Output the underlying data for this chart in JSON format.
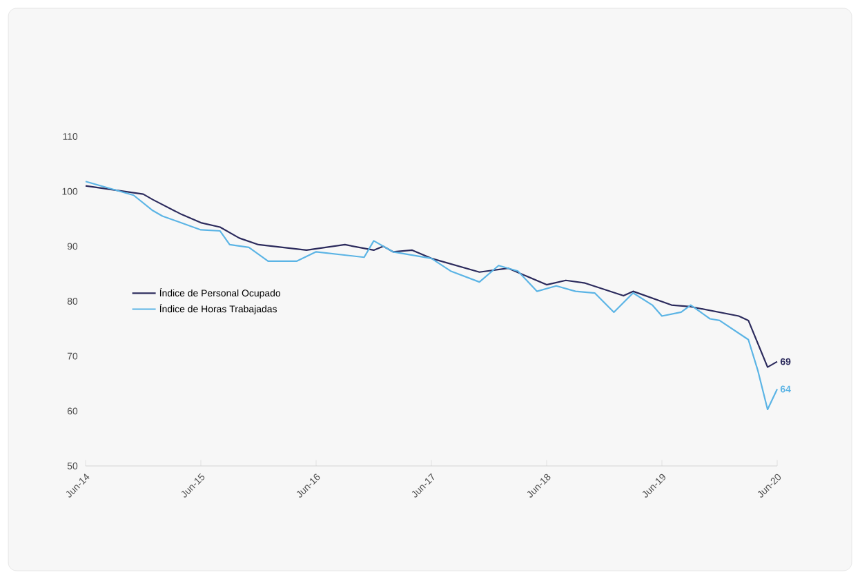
{
  "chart_data": {
    "type": "line",
    "xlim": [
      "2014-06",
      "2020-06"
    ],
    "ylim": [
      50,
      110
    ],
    "yticks": [
      50,
      60,
      70,
      80,
      90,
      100,
      110
    ],
    "xticks": [
      {
        "value": "2014-06",
        "label": "Jun-14"
      },
      {
        "value": "2015-06",
        "label": "Jun-15"
      },
      {
        "value": "2016-06",
        "label": "Jun-16"
      },
      {
        "value": "2017-06",
        "label": "Jun-17"
      },
      {
        "value": "2018-06",
        "label": "Jun-18"
      },
      {
        "value": "2019-06",
        "label": "Jun-19"
      },
      {
        "value": "2020-06",
        "label": "Jun-20"
      }
    ],
    "legend": "left",
    "grid": false,
    "marker": "none",
    "line_style": "solid",
    "series": [
      {
        "name": "Índice de Personal Ocupado",
        "color": "#2b2a5c",
        "x": [
          "2014-06",
          "2014-12",
          "2015-01",
          "2015-04",
          "2015-06",
          "2015-08",
          "2015-10",
          "2015-12",
          "2016-05",
          "2016-09",
          "2016-12",
          "2017-01",
          "2017-02",
          "2017-04",
          "2017-06",
          "2017-11",
          "2018-02",
          "2018-06",
          "2018-08",
          "2018-10",
          "2019-02",
          "2019-03",
          "2019-07",
          "2019-09",
          "2020-02",
          "2020-03",
          "2020-05",
          "2020-06"
        ],
        "values": [
          101,
          99.5,
          98.5,
          95.8,
          94.3,
          93.5,
          91.5,
          90.3,
          89.3,
          90.3,
          89.3,
          90,
          89,
          89.3,
          87.8,
          85.3,
          86,
          83,
          83.8,
          83.3,
          81,
          81.8,
          79.3,
          79,
          77.3,
          76.5,
          68,
          69
        ],
        "value_labels": [
          null,
          null,
          null,
          null,
          null,
          null,
          null,
          null,
          null,
          null,
          null,
          null,
          null,
          null,
          null,
          null,
          null,
          null,
          null,
          null,
          null,
          null,
          null,
          null,
          null,
          null,
          null,
          "69"
        ]
      },
      {
        "name": "Índice de Horas Trabajadas",
        "color": "#5bb4e5",
        "x": [
          "2014-06",
          "2014-11",
          "2015-01",
          "2015-02",
          "2015-06",
          "2015-08",
          "2015-09",
          "2015-11",
          "2016-01",
          "2016-04",
          "2016-06",
          "2016-11",
          "2016-12",
          "2017-02",
          "2017-06",
          "2017-08",
          "2017-11",
          "2018-01",
          "2018-03",
          "2018-05",
          "2018-07",
          "2018-09",
          "2018-11",
          "2019-01",
          "2019-03",
          "2019-05",
          "2019-06",
          "2019-08",
          "2019-09",
          "2019-11",
          "2019-12",
          "2020-03",
          "2020-04",
          "2020-05",
          "2020-06"
        ],
        "values": [
          101.8,
          99.3,
          96.5,
          95.5,
          93,
          92.8,
          90.3,
          89.8,
          87.3,
          87.3,
          89,
          88,
          91,
          89,
          87.8,
          85.5,
          83.5,
          86.5,
          85.5,
          81.8,
          82.8,
          81.8,
          81.5,
          78,
          81.5,
          79.3,
          77.3,
          78,
          79.3,
          76.8,
          76.5,
          73,
          67.3,
          60.3,
          64
        ],
        "value_labels": [
          null,
          null,
          null,
          null,
          null,
          null,
          null,
          null,
          null,
          null,
          null,
          null,
          null,
          null,
          null,
          null,
          null,
          null,
          null,
          null,
          null,
          null,
          null,
          null,
          null,
          null,
          null,
          null,
          null,
          null,
          null,
          null,
          null,
          null,
          "64"
        ]
      }
    ]
  }
}
